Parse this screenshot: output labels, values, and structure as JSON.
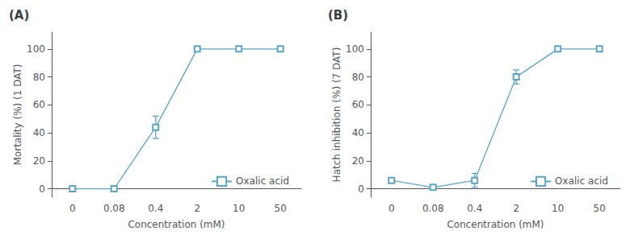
{
  "chart_data": [
    {
      "type": "line",
      "title": "(A)",
      "xlabel": "Concentration (mM)",
      "ylabel": "Mortality (%) (1 DAT)",
      "categories": [
        "0",
        "0.08",
        "0.4",
        "2",
        "10",
        "50"
      ],
      "series": [
        {
          "name": "Oxalic acid",
          "color": "#5BA4C8",
          "marker": "square",
          "values": [
            0,
            0,
            44,
            100,
            100,
            100
          ],
          "yerr": [
            0,
            0,
            8,
            0,
            0,
            0
          ]
        }
      ],
      "ylim": [
        -6,
        112
      ],
      "yticks": [
        0,
        20,
        40,
        60,
        80,
        100
      ],
      "grid": false,
      "legend": "lower right"
    },
    {
      "type": "line",
      "title": "(B)",
      "xlabel": "Concentration (mM)",
      "ylabel": "Hatch inhibition (%) (7 DAT)",
      "categories": [
        "0",
        "0.08",
        "0.4",
        "2",
        "10",
        "50"
      ],
      "series": [
        {
          "name": "Oxalic acid",
          "color": "#5BA4C8",
          "marker": "square",
          "values": [
            6,
            1,
            6,
            80,
            100,
            100
          ],
          "yerr": [
            2,
            0,
            5,
            5,
            1,
            0
          ]
        }
      ],
      "ylim": [
        -6,
        112
      ],
      "yticks": [
        0,
        20,
        40,
        60,
        80,
        100
      ],
      "grid": false,
      "legend": "lower right"
    }
  ]
}
